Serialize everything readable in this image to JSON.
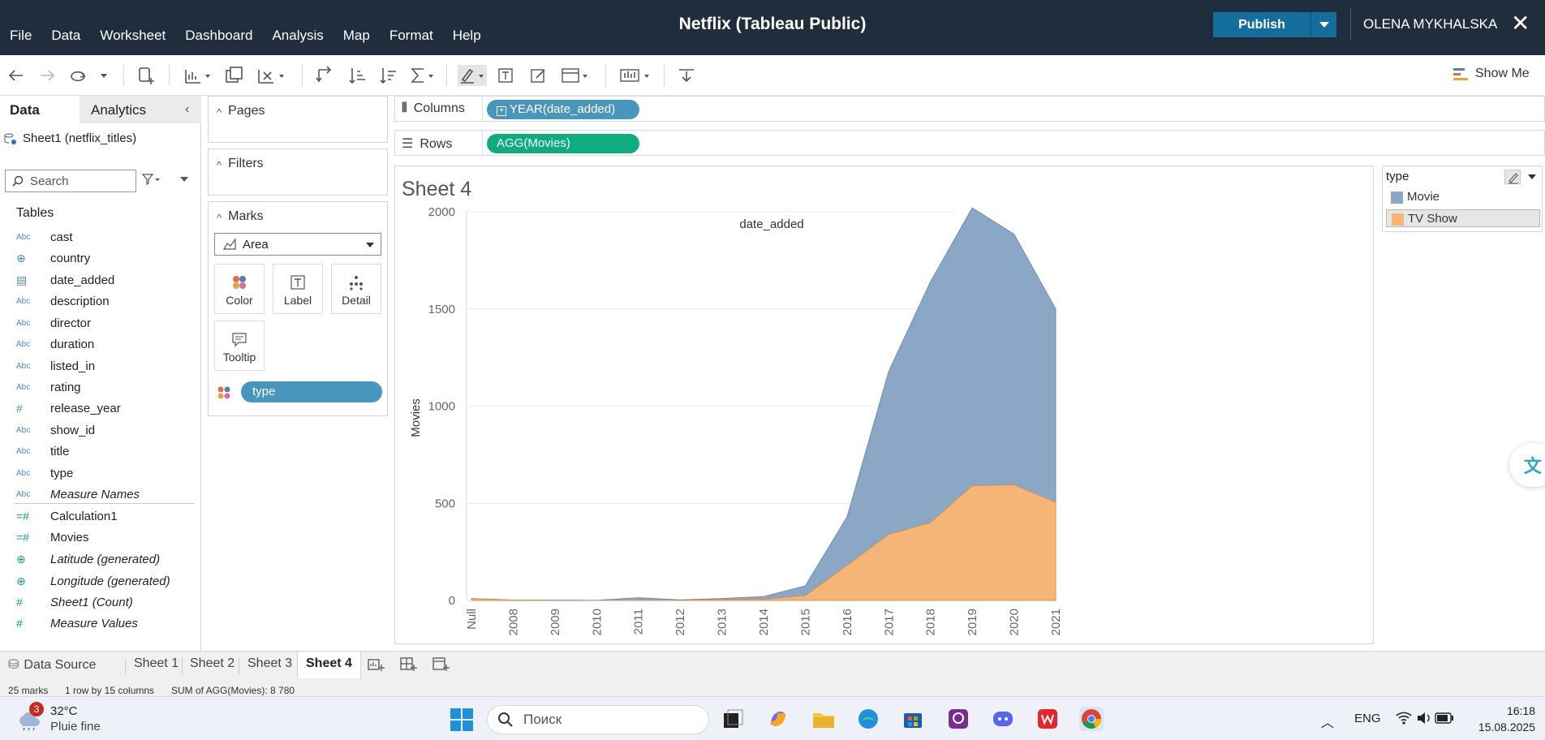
{
  "app": {
    "title": "Netflix (Tableau Public)",
    "publish_label": "Publish",
    "user": "OLENA MYKHALSKA",
    "menu": [
      "File",
      "Data",
      "Worksheet",
      "Dashboard",
      "Analysis",
      "Map",
      "Format",
      "Help"
    ]
  },
  "toolbar": {
    "show_me": "Show Me"
  },
  "data_pane": {
    "tabs": {
      "data": "Data",
      "analytics": "Analytics"
    },
    "datasource": "Sheet1 (netflix_titles)",
    "search_placeholder": "Search",
    "tables_label": "Tables",
    "dimensions": [
      {
        "type_icon": "Abc",
        "name": "cast"
      },
      {
        "type_icon": "globe",
        "name": "country"
      },
      {
        "type_icon": "calendar",
        "name": "date_added"
      },
      {
        "type_icon": "Abc",
        "name": "description"
      },
      {
        "type_icon": "Abc",
        "name": "director"
      },
      {
        "type_icon": "Abc",
        "name": "duration"
      },
      {
        "type_icon": "Abc",
        "name": "listed_in"
      },
      {
        "type_icon": "Abc",
        "name": "rating"
      },
      {
        "type_icon": "#",
        "name": "release_year"
      },
      {
        "type_icon": "Abc",
        "name": "show_id"
      },
      {
        "type_icon": "Abc",
        "name": "title"
      },
      {
        "type_icon": "Abc",
        "name": "type"
      },
      {
        "type_icon": "Abc",
        "name": "Measure Names"
      }
    ],
    "measures": [
      {
        "type_icon": "=#",
        "name": "Calculation1"
      },
      {
        "type_icon": "=#",
        "name": "Movies"
      },
      {
        "type_icon": "globe",
        "name": "Latitude (generated)"
      },
      {
        "type_icon": "globe",
        "name": "Longitude (generated)"
      },
      {
        "type_icon": "#",
        "name": "Sheet1 (Count)"
      },
      {
        "type_icon": "#",
        "name": "Measure Values"
      }
    ]
  },
  "cards": {
    "pages": "Pages",
    "filters": "Filters",
    "marks": "Marks",
    "mark_type": "Area",
    "buttons": [
      "Color",
      "Label",
      "Detail",
      "Tooltip"
    ],
    "color_pill": "type"
  },
  "shelves": {
    "columns_label": "Columns",
    "columns_pill": "YEAR(date_added)",
    "rows_label": "Rows",
    "rows_pill": "AGG(Movies)"
  },
  "sheet": {
    "title": "Sheet 4"
  },
  "legend": {
    "title": "type",
    "items": [
      {
        "label": "Movie",
        "color": "#8ba7c6"
      },
      {
        "label": "TV Show",
        "color": "#f5b576"
      }
    ]
  },
  "chart_data": {
    "type": "area",
    "title": "date_added",
    "xlabel": "",
    "ylabel": "Movies",
    "stacked": true,
    "categories": [
      "Null",
      "2008",
      "2009",
      "2010",
      "2011",
      "2012",
      "2013",
      "2014",
      "2015",
      "2016",
      "2017",
      "2018",
      "2019",
      "2020",
      "2021"
    ],
    "ylim": [
      0,
      2000
    ],
    "yticks": [
      0,
      500,
      1000,
      1500,
      2000
    ],
    "grid": true,
    "series": [
      {
        "name": "TV Show",
        "color": "#f5b576",
        "values": [
          10,
          1,
          0,
          0,
          0,
          0,
          5,
          5,
          25,
          180,
          340,
          400,
          590,
          595,
          505
        ]
      },
      {
        "name": "Movie",
        "color": "#8ba7c6",
        "values": [
          0,
          1,
          2,
          1,
          14,
          3,
          5,
          15,
          50,
          250,
          840,
          1240,
          1430,
          1290,
          995
        ]
      }
    ]
  },
  "sheet_tabs": {
    "data_source": "Data Source",
    "tabs": [
      "Sheet 1",
      "Sheet 2",
      "Sheet 3",
      "Sheet 4"
    ],
    "active": "Sheet 4"
  },
  "status": {
    "marks": "25 marks",
    "dims": "1 row by 15 columns",
    "sum": "SUM of AGG(Movies): 8 780"
  },
  "taskbar": {
    "weather_badge": "3",
    "temperature": "32°C",
    "weather": "Pluie fine",
    "search_placeholder": "Поиск",
    "language": "ENG",
    "time": "16:18",
    "date": "15.08.2025"
  }
}
